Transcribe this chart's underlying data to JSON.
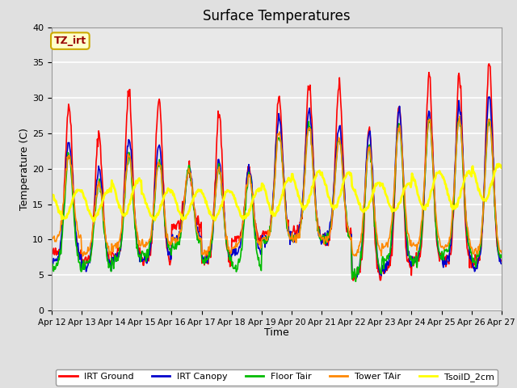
{
  "title": "Surface Temperatures",
  "xlabel": "Time",
  "ylabel": "Temperature (C)",
  "ylim": [
    0,
    40
  ],
  "plot_bg_color": "#e8e8e8",
  "fig_bg_color": "#e0e0e0",
  "series": {
    "IRT Ground": {
      "color": "#ff0000",
      "lw": 1.2
    },
    "IRT Canopy": {
      "color": "#0000cc",
      "lw": 1.2
    },
    "Floor Tair": {
      "color": "#00bb00",
      "lw": 1.2
    },
    "Tower TAir": {
      "color": "#ff8800",
      "lw": 1.2
    },
    "TsoilD_2cm": {
      "color": "#ffff00",
      "lw": 2.0
    }
  },
  "yticks": [
    0,
    5,
    10,
    15,
    20,
    25,
    30,
    35,
    40
  ],
  "xtick_labels": [
    "Apr 12",
    "Apr 13",
    "Apr 14",
    "Apr 15",
    "Apr 16",
    "Apr 17",
    "Apr 18",
    "Apr 19",
    "Apr 20",
    "Apr 21",
    "Apr 22",
    "Apr 23",
    "Apr 24",
    "Apr 25",
    "Apr 26",
    "Apr 27"
  ],
  "annotation_text": "TZ_irt",
  "annotation_color": "#990000",
  "annotation_bg": "#ffffcc",
  "annotation_border": "#ccaa00",
  "n_days": 15,
  "pts_per_day": 48
}
